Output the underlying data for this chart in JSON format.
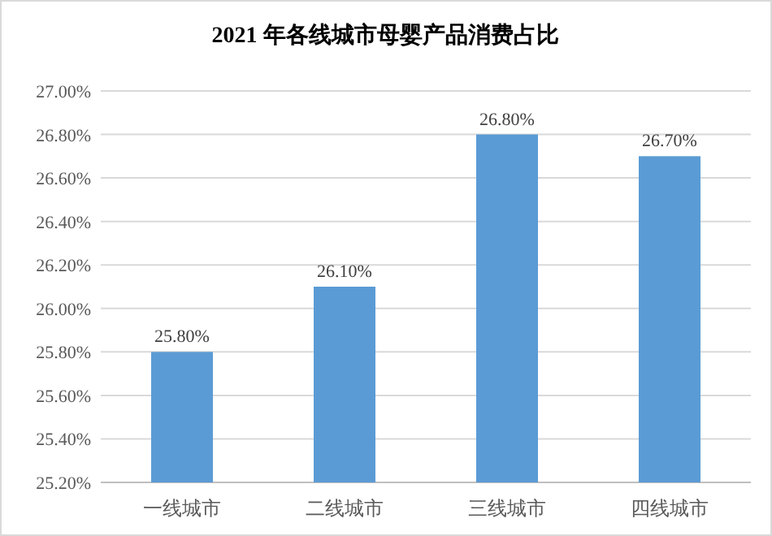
{
  "chart_data": {
    "type": "bar",
    "title": "2021 年各线城市母婴产品消费占比",
    "categories": [
      "一线城市",
      "二线城市",
      "三线城市",
      "四线城市"
    ],
    "values": [
      25.8,
      26.1,
      26.8,
      26.7
    ],
    "value_labels": [
      "25.80%",
      "26.10%",
      "26.80%",
      "26.70%"
    ],
    "color": "#5b9bd5",
    "ylim": [
      25.2,
      27.0
    ],
    "yticks": [
      {
        "value": 25.2,
        "label": "25.20%"
      },
      {
        "value": 25.4,
        "label": "25.40%"
      },
      {
        "value": 25.6,
        "label": "25.60%"
      },
      {
        "value": 25.8,
        "label": "25.80%"
      },
      {
        "value": 26.0,
        "label": "26.00%"
      },
      {
        "value": 26.2,
        "label": "26.20%"
      },
      {
        "value": 26.4,
        "label": "26.40%"
      },
      {
        "value": 26.6,
        "label": "26.60%"
      },
      {
        "value": 26.8,
        "label": "26.80%"
      },
      {
        "value": 27.0,
        "label": "27.00%"
      }
    ],
    "grid": "y"
  }
}
